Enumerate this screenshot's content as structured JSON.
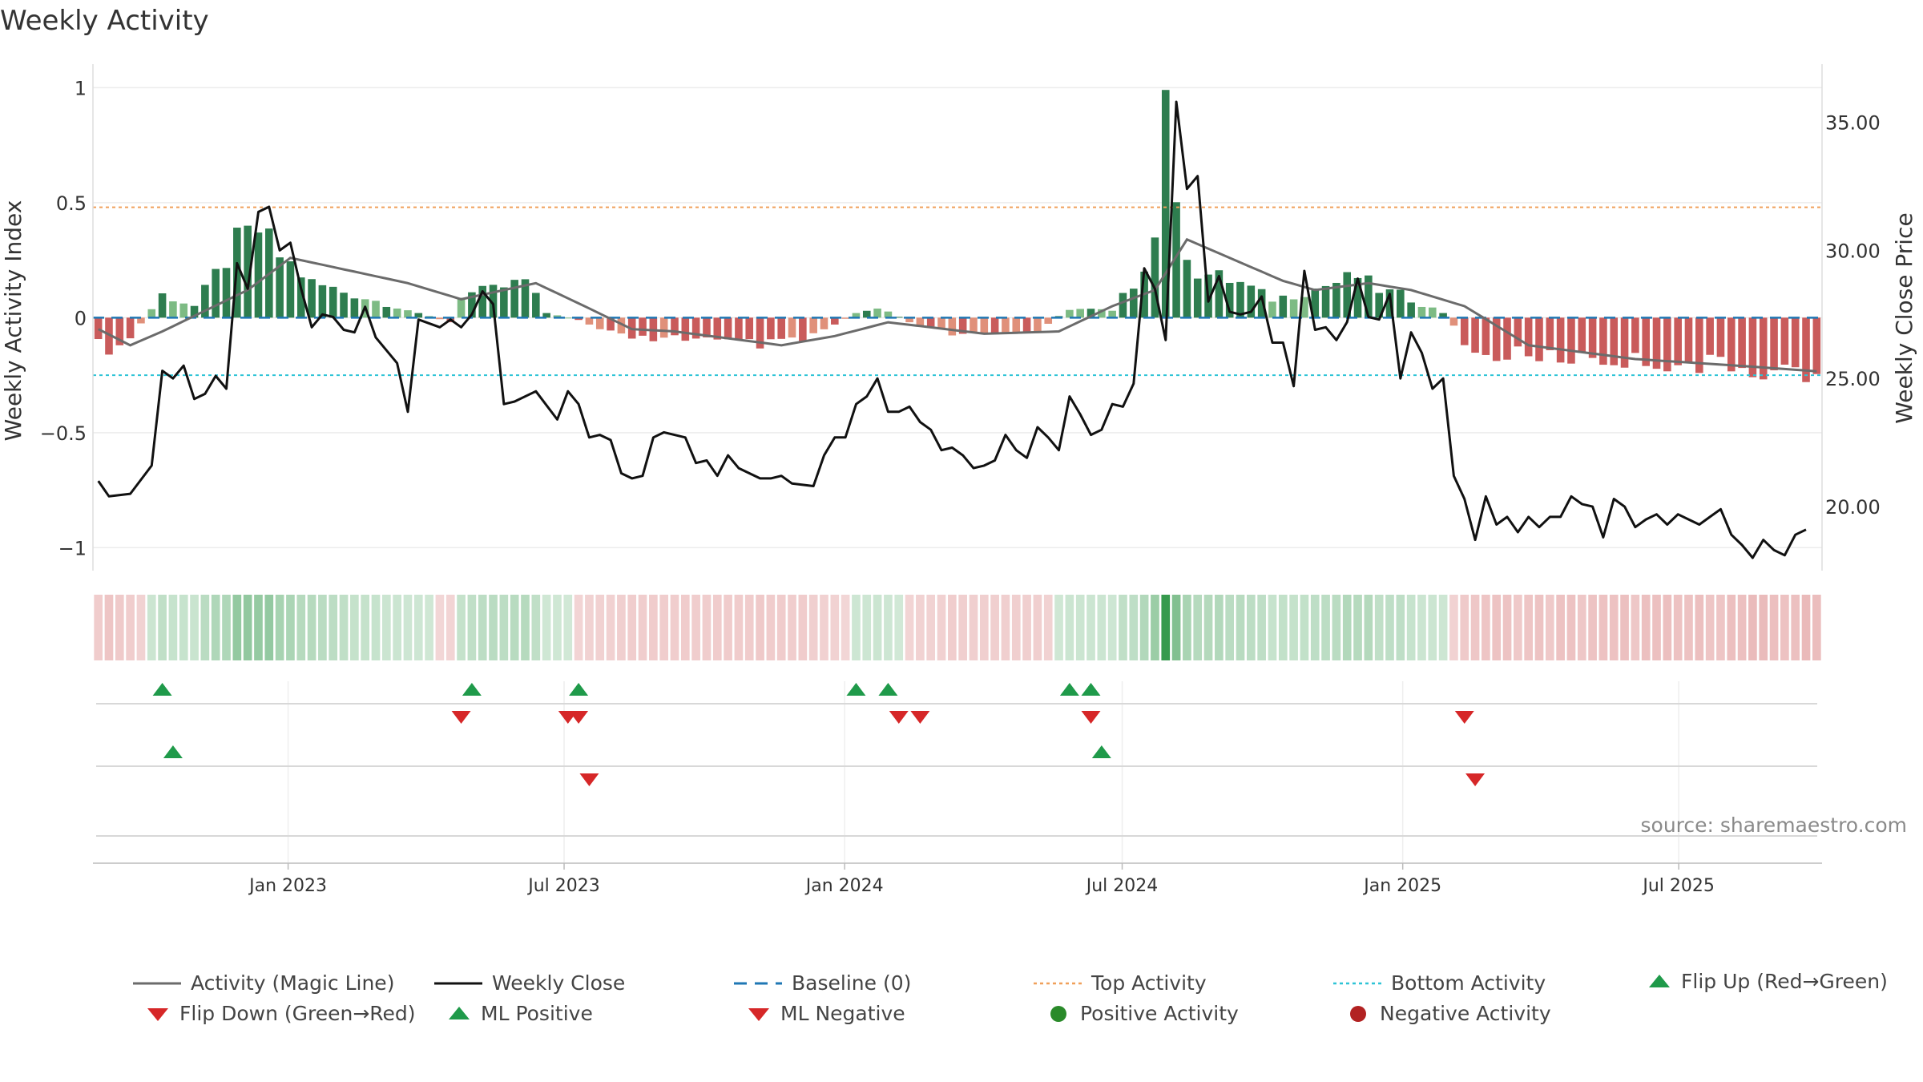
{
  "title": "Weekly Activity",
  "source": "source: sharemaestro.com",
  "colors": {
    "pos_dark": "#2e7d4f",
    "pos_light": "#7dbb84",
    "neg_dark": "#c95b5b",
    "neg_light": "#e0907a",
    "close": "#111111",
    "magic": "#6b6b6b",
    "baseline": "#1f77b4",
    "top": "#f0a05a",
    "bottom": "#2ec4d6",
    "up": "#1f9a4a",
    "down": "#d62728",
    "neg_dot": "#b22222"
  },
  "chart_data": {
    "type": "bar+line",
    "start_date": "2022-08-26",
    "weeks": 162,
    "x_ticks": [
      "Jan 2023",
      "Jul 2023",
      "Jan 2024",
      "Jul 2024",
      "Jan 2025",
      "Jul 2025"
    ],
    "left_axis": {
      "label": "Weekly Activity Index",
      "ylim": [
        -1.1,
        1.05
      ],
      "ticks": [
        1,
        0.5,
        0,
        -0.5,
        -1
      ],
      "tick_labels": [
        "1",
        "0.5",
        "0",
        "−0.5",
        "−1"
      ]
    },
    "right_axis": {
      "label": "Weekly Close Price",
      "ylim": [
        17.5,
        36.8
      ],
      "ticks": [
        35,
        30,
        25,
        20
      ],
      "tick_labels": [
        "35.00",
        "30.00",
        "25.00",
        "20.00"
      ]
    },
    "top_activity": 0.48,
    "bottom_activity": -0.25,
    "activity_keys": [
      [
        "2022-08-26",
        -0.12
      ],
      [
        "2022-09-09",
        -0.15
      ],
      [
        "2022-10-07",
        0.1
      ],
      [
        "2022-10-28",
        0.05
      ],
      [
        "2022-11-25",
        0.32
      ],
      [
        "2022-12-09",
        0.38
      ],
      [
        "2022-12-23",
        0.27
      ],
      [
        "2023-01-13",
        0.15
      ],
      [
        "2023-02-10",
        0.1
      ],
      [
        "2023-03-24",
        0.02
      ],
      [
        "2023-04-14",
        -0.02
      ],
      [
        "2023-04-21",
        0.1
      ],
      [
        "2023-05-12",
        0.12
      ],
      [
        "2023-06-02",
        0.16
      ],
      [
        "2023-06-16",
        0.02
      ],
      [
        "2023-07-07",
        -0.01
      ],
      [
        "2023-07-21",
        -0.05
      ],
      [
        "2023-08-11",
        -0.1
      ],
      [
        "2023-09-08",
        -0.08
      ],
      [
        "2023-10-13",
        -0.11
      ],
      [
        "2023-11-10",
        -0.12
      ],
      [
        "2023-12-01",
        -0.1
      ],
      [
        "2023-12-22",
        -0.03
      ],
      [
        "2024-01-05",
        0.02
      ],
      [
        "2024-01-19",
        0.05
      ],
      [
        "2024-02-09",
        -0.02
      ],
      [
        "2024-03-08",
        -0.07
      ],
      [
        "2024-04-05",
        -0.08
      ],
      [
        "2024-05-03",
        -0.06
      ],
      [
        "2024-05-24",
        0.04
      ],
      [
        "2024-06-21",
        0.03
      ],
      [
        "2024-07-05",
        0.15
      ],
      [
        "2024-07-19",
        0.35
      ],
      [
        "2024-07-26",
        0.99
      ],
      [
        "2024-08-02",
        0.42
      ],
      [
        "2024-08-16",
        0.2
      ],
      [
        "2024-09-13",
        0.15
      ],
      [
        "2024-10-04",
        0.08
      ],
      [
        "2024-10-18",
        0.1
      ],
      [
        "2024-11-08",
        0.14
      ],
      [
        "2024-11-29",
        0.18
      ],
      [
        "2024-12-13",
        0.12
      ],
      [
        "2024-12-27",
        0.1
      ],
      [
        "2025-01-24",
        0.02
      ],
      [
        "2025-02-07",
        -0.1
      ],
      [
        "2025-02-14",
        -0.17
      ],
      [
        "2025-03-14",
        -0.16
      ],
      [
        "2025-05-02",
        -0.18
      ],
      [
        "2025-07-04",
        -0.2
      ],
      [
        "2025-08-15",
        -0.22
      ],
      [
        "2025-09-26",
        -0.24
      ],
      [
        "2025-10-10",
        -0.22
      ]
    ],
    "magic_keys": [
      [
        "2022-08-26",
        -0.05
      ],
      [
        "2022-09-16",
        -0.12
      ],
      [
        "2022-10-07",
        -0.06
      ],
      [
        "2022-11-04",
        0.03
      ],
      [
        "2022-12-02",
        0.12
      ],
      [
        "2022-12-30",
        0.26
      ],
      [
        "2023-01-20",
        0.23
      ],
      [
        "2023-03-17",
        0.15
      ],
      [
        "2023-04-21",
        0.08
      ],
      [
        "2023-06-09",
        0.15
      ],
      [
        "2023-07-14",
        0.04
      ],
      [
        "2023-08-11",
        -0.05
      ],
      [
        "2023-09-08",
        -0.06
      ],
      [
        "2023-11-17",
        -0.12
      ],
      [
        "2023-12-22",
        -0.08
      ],
      [
        "2024-01-26",
        -0.02
      ],
      [
        "2024-03-29",
        -0.07
      ],
      [
        "2024-05-17",
        -0.06
      ],
      [
        "2024-06-21",
        0.05
      ],
      [
        "2024-07-19",
        0.12
      ],
      [
        "2024-08-09",
        0.34
      ],
      [
        "2024-09-06",
        0.26
      ],
      [
        "2024-10-11",
        0.16
      ],
      [
        "2024-11-01",
        0.12
      ],
      [
        "2024-12-06",
        0.15
      ],
      [
        "2025-01-03",
        0.12
      ],
      [
        "2025-02-07",
        0.05
      ],
      [
        "2025-03-21",
        -0.12
      ],
      [
        "2025-05-30",
        -0.18
      ],
      [
        "2025-08-08",
        -0.21
      ],
      [
        "2025-10-10",
        -0.24
      ]
    ],
    "close_keys": [
      [
        "2022-08-26",
        21.0
      ],
      [
        "2022-09-02",
        20.4
      ],
      [
        "2022-09-16",
        20.5
      ],
      [
        "2022-09-30",
        21.6
      ],
      [
        "2022-10-07",
        25.3
      ],
      [
        "2022-10-14",
        25.0
      ],
      [
        "2022-10-21",
        25.5
      ],
      [
        "2022-10-28",
        24.2
      ],
      [
        "2022-11-04",
        24.4
      ],
      [
        "2022-11-11",
        25.1
      ],
      [
        "2022-11-18",
        24.6
      ],
      [
        "2022-11-25",
        29.5
      ],
      [
        "2022-12-02",
        28.5
      ],
      [
        "2022-12-09",
        31.5
      ],
      [
        "2022-12-16",
        31.7
      ],
      [
        "2022-12-23",
        30.0
      ],
      [
        "2022-12-30",
        30.3
      ],
      [
        "2023-01-06",
        28.5
      ],
      [
        "2023-01-13",
        27.0
      ],
      [
        "2023-01-20",
        27.5
      ],
      [
        "2023-01-27",
        27.4
      ],
      [
        "2023-02-03",
        26.9
      ],
      [
        "2023-02-10",
        26.8
      ],
      [
        "2023-02-17",
        27.8
      ],
      [
        "2023-02-24",
        26.6
      ],
      [
        "2023-03-10",
        25.6
      ],
      [
        "2023-03-17",
        23.7
      ],
      [
        "2023-03-24",
        27.3
      ],
      [
        "2023-04-07",
        27.0
      ],
      [
        "2023-04-14",
        27.3
      ],
      [
        "2023-04-21",
        27.0
      ],
      [
        "2023-04-28",
        27.5
      ],
      [
        "2023-05-05",
        28.4
      ],
      [
        "2023-05-12",
        27.9
      ],
      [
        "2023-05-19",
        24.0
      ],
      [
        "2023-05-26",
        24.1
      ],
      [
        "2023-06-09",
        24.5
      ],
      [
        "2023-06-23",
        23.4
      ],
      [
        "2023-06-30",
        24.5
      ],
      [
        "2023-07-07",
        24.0
      ],
      [
        "2023-07-14",
        22.7
      ],
      [
        "2023-07-21",
        22.8
      ],
      [
        "2023-07-28",
        22.6
      ],
      [
        "2023-08-04",
        21.3
      ],
      [
        "2023-08-11",
        21.1
      ],
      [
        "2023-08-18",
        21.2
      ],
      [
        "2023-08-25",
        22.7
      ],
      [
        "2023-09-01",
        22.9
      ],
      [
        "2023-09-15",
        22.7
      ],
      [
        "2023-09-22",
        21.7
      ],
      [
        "2023-09-29",
        21.8
      ],
      [
        "2023-10-06",
        21.2
      ],
      [
        "2023-10-13",
        22.0
      ],
      [
        "2023-10-20",
        21.5
      ],
      [
        "2023-11-03",
        21.1
      ],
      [
        "2023-11-10",
        21.1
      ],
      [
        "2023-11-17",
        21.2
      ],
      [
        "2023-11-24",
        20.9
      ],
      [
        "2023-12-08",
        20.8
      ],
      [
        "2023-12-15",
        22.0
      ],
      [
        "2023-12-22",
        22.7
      ],
      [
        "2023-12-29",
        22.7
      ],
      [
        "2024-01-05",
        24.0
      ],
      [
        "2024-01-12",
        24.3
      ],
      [
        "2024-01-19",
        25.0
      ],
      [
        "2024-01-26",
        23.7
      ],
      [
        "2024-02-02",
        23.7
      ],
      [
        "2024-02-09",
        23.9
      ],
      [
        "2024-02-16",
        23.3
      ],
      [
        "2024-02-23",
        23.0
      ],
      [
        "2024-03-01",
        22.2
      ],
      [
        "2024-03-08",
        22.3
      ],
      [
        "2024-03-15",
        22.0
      ],
      [
        "2024-03-22",
        21.5
      ],
      [
        "2024-03-29",
        21.6
      ],
      [
        "2024-04-05",
        21.8
      ],
      [
        "2024-04-12",
        22.8
      ],
      [
        "2024-04-19",
        22.2
      ],
      [
        "2024-04-26",
        21.9
      ],
      [
        "2024-05-03",
        23.1
      ],
      [
        "2024-05-10",
        22.7
      ],
      [
        "2024-05-17",
        22.2
      ],
      [
        "2024-05-24",
        24.3
      ],
      [
        "2024-05-31",
        23.6
      ],
      [
        "2024-06-07",
        22.8
      ],
      [
        "2024-06-14",
        23.0
      ],
      [
        "2024-06-21",
        24.0
      ],
      [
        "2024-06-28",
        23.9
      ],
      [
        "2024-07-05",
        24.8
      ],
      [
        "2024-07-12",
        29.3
      ],
      [
        "2024-07-19",
        28.5
      ],
      [
        "2024-07-26",
        26.5
      ],
      [
        "2024-08-02",
        35.8
      ],
      [
        "2024-08-09",
        32.4
      ],
      [
        "2024-08-16",
        32.9
      ],
      [
        "2024-08-23",
        28.0
      ],
      [
        "2024-08-30",
        29.0
      ],
      [
        "2024-09-06",
        27.6
      ],
      [
        "2024-09-13",
        27.5
      ],
      [
        "2024-09-20",
        27.6
      ],
      [
        "2024-09-27",
        28.2
      ],
      [
        "2024-10-04",
        26.4
      ],
      [
        "2024-10-11",
        26.4
      ],
      [
        "2024-10-18",
        24.7
      ],
      [
        "2024-10-25",
        29.2
      ],
      [
        "2024-11-01",
        26.9
      ],
      [
        "2024-11-08",
        27.0
      ],
      [
        "2024-11-15",
        26.5
      ],
      [
        "2024-11-22",
        27.2
      ],
      [
        "2024-11-29",
        28.9
      ],
      [
        "2024-12-06",
        27.4
      ],
      [
        "2024-12-13",
        27.3
      ],
      [
        "2024-12-20",
        28.3
      ],
      [
        "2024-12-27",
        25.0
      ],
      [
        "2025-01-03",
        26.8
      ],
      [
        "2025-01-10",
        26.0
      ],
      [
        "2025-01-17",
        24.6
      ],
      [
        "2025-01-24",
        25.0
      ],
      [
        "2025-01-31",
        21.2
      ],
      [
        "2025-02-07",
        20.3
      ],
      [
        "2025-02-14",
        18.7
      ],
      [
        "2025-02-21",
        20.4
      ],
      [
        "2025-02-28",
        19.3
      ],
      [
        "2025-03-07",
        19.6
      ],
      [
        "2025-03-14",
        19.0
      ],
      [
        "2025-03-21",
        19.6
      ],
      [
        "2025-03-28",
        19.2
      ],
      [
        "2025-04-04",
        19.6
      ],
      [
        "2025-04-11",
        19.6
      ],
      [
        "2025-04-18",
        20.4
      ],
      [
        "2025-04-25",
        20.1
      ],
      [
        "2025-05-02",
        20.0
      ],
      [
        "2025-05-09",
        18.8
      ],
      [
        "2025-05-16",
        20.3
      ],
      [
        "2025-05-23",
        20.0
      ],
      [
        "2025-05-30",
        19.2
      ],
      [
        "2025-06-06",
        19.5
      ],
      [
        "2025-06-13",
        19.7
      ],
      [
        "2025-06-20",
        19.3
      ],
      [
        "2025-06-27",
        19.7
      ],
      [
        "2025-07-04",
        19.5
      ],
      [
        "2025-07-11",
        19.3
      ],
      [
        "2025-07-18",
        19.6
      ],
      [
        "2025-07-25",
        19.9
      ],
      [
        "2025-08-01",
        18.9
      ],
      [
        "2025-08-08",
        18.5
      ],
      [
        "2025-08-15",
        18.0
      ],
      [
        "2025-08-22",
        18.7
      ],
      [
        "2025-08-29",
        18.3
      ],
      [
        "2025-09-05",
        18.1
      ],
      [
        "2025-09-12",
        18.9
      ],
      [
        "2025-09-19",
        19.1
      ]
    ],
    "flip_up": [
      "2022-10-07",
      "2023-04-28",
      "2023-07-07",
      "2024-01-05",
      "2024-01-26",
      "2024-05-24",
      "2024-06-07"
    ],
    "flip_down": [
      "2023-04-21",
      "2023-06-30",
      "2023-07-07",
      "2024-02-02",
      "2024-02-16",
      "2024-06-07",
      "2025-02-07"
    ],
    "ml_positive": [
      "2022-10-14",
      "2024-06-14"
    ],
    "ml_negative": [
      "2023-07-14",
      "2025-02-14"
    ]
  },
  "legend": {
    "magic": "Activity (Magic Line)",
    "close": "Weekly Close",
    "baseline": "Baseline (0)",
    "top": "Top Activity",
    "bottom": "Bottom Activity",
    "flip_up": "Flip Up (Red→Green)",
    "flip_down": "Flip Down (Green→Red)",
    "ml_positive": "ML Positive",
    "ml_negative": "ML Negative",
    "pos_activity": "Positive Activity",
    "neg_activity": "Negative Activity"
  }
}
